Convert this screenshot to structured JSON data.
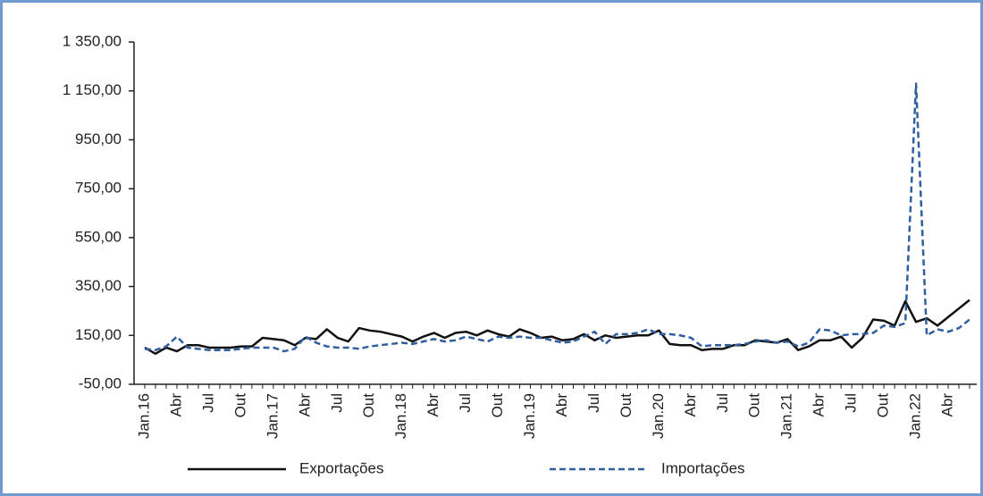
{
  "chart_data": {
    "type": "line",
    "categories": [
      "Jan.16",
      null,
      null,
      "Abr",
      null,
      null,
      "Jul",
      null,
      null,
      "Out",
      null,
      null,
      "Jan.17",
      null,
      null,
      "Abr",
      null,
      null,
      "Jul",
      null,
      null,
      "Out",
      null,
      null,
      "Jan.18",
      null,
      null,
      "Abr",
      null,
      null,
      "Jul",
      null,
      null,
      "Out",
      null,
      null,
      "Jan.19",
      null,
      null,
      "Abr",
      null,
      null,
      "Jul",
      null,
      null,
      "Out",
      null,
      null,
      "Jan.20",
      null,
      null,
      "Abr",
      null,
      null,
      "Jul",
      null,
      null,
      "Out",
      null,
      null,
      "Jan.21",
      null,
      null,
      "Abr",
      null,
      null,
      "Jul",
      null,
      null,
      "Out",
      null,
      null,
      "Jan.22",
      null,
      null,
      "Abr",
      null,
      null
    ],
    "series": [
      {
        "name": "Exportações",
        "color": "#111111",
        "linestyle": "solid",
        "values": [
          100,
          75,
          100,
          85,
          110,
          110,
          100,
          100,
          100,
          105,
          105,
          140,
          135,
          130,
          110,
          140,
          135,
          175,
          140,
          125,
          180,
          170,
          165,
          155,
          145,
          125,
          145,
          160,
          140,
          160,
          165,
          150,
          170,
          155,
          145,
          175,
          160,
          140,
          145,
          130,
          135,
          155,
          130,
          150,
          140,
          145,
          150,
          150,
          170,
          115,
          110,
          110,
          90,
          95,
          95,
          110,
          110,
          130,
          125,
          120,
          135,
          90,
          105,
          130,
          130,
          145,
          100,
          140,
          215,
          210,
          190,
          290,
          205,
          220,
          190,
          225,
          260,
          295
        ]
      },
      {
        "name": "Importações",
        "color": "#2f5f9e",
        "linestyle": "dashed",
        "values": [
          95,
          90,
          105,
          145,
          100,
          95,
          90,
          90,
          90,
          95,
          100,
          100,
          100,
          85,
          95,
          145,
          120,
          105,
          100,
          100,
          95,
          105,
          110,
          115,
          120,
          115,
          125,
          135,
          125,
          130,
          145,
          135,
          125,
          145,
          140,
          145,
          140,
          140,
          130,
          120,
          125,
          145,
          165,
          115,
          155,
          155,
          160,
          175,
          155,
          155,
          150,
          140,
          105,
          110,
          110,
          110,
          115,
          125,
          130,
          120,
          125,
          105,
          120,
          175,
          170,
          150,
          155,
          155,
          160,
          190,
          185,
          200,
          1180,
          150,
          175,
          165,
          180,
          215
        ]
      }
    ],
    "ylim": [
      -50,
      1350
    ],
    "yticks": [
      {
        "value": -50,
        "label": "-50,00"
      },
      {
        "value": 150,
        "label": "150,00"
      },
      {
        "value": 350,
        "label": "350,00"
      },
      {
        "value": 550,
        "label": "550,00"
      },
      {
        "value": 750,
        "label": "750,00"
      },
      {
        "value": 950,
        "label": "950,00"
      },
      {
        "value": 1150,
        "label": "1 150,00"
      },
      {
        "value": 1350,
        "label": "1 350,00"
      }
    ],
    "legend": "bottom"
  }
}
